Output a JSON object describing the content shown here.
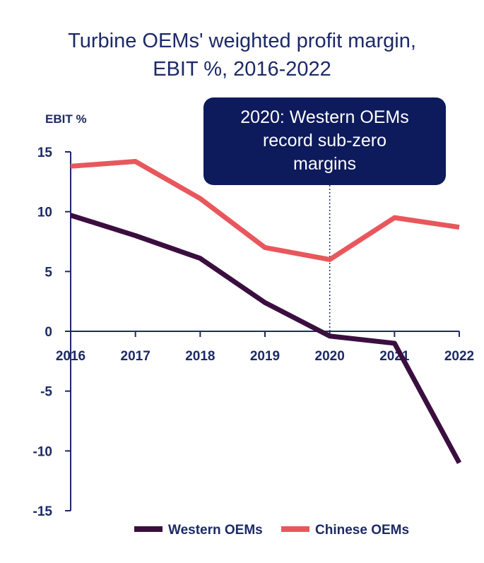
{
  "chart_data": {
    "type": "line",
    "title_lines": [
      "Turbine OEMs' weighted profit margin,",
      "EBIT %, 2016-2022"
    ],
    "ylabel": "EBIT %",
    "x": [
      "2016",
      "2017",
      "2018",
      "2019",
      "2020",
      "2021",
      "2022"
    ],
    "ylim": [
      -15,
      15
    ],
    "yticks": [
      "15",
      "10",
      "5",
      "0",
      "-5",
      "-10",
      "-15"
    ],
    "series": [
      {
        "name": "Western OEMs",
        "color": "#3a0f3f",
        "values": [
          9.7,
          8.0,
          6.1,
          2.4,
          -0.4,
          -1.0,
          -11.0
        ]
      },
      {
        "name": "Chinese OEMs",
        "color": "#e8575c",
        "values": [
          13.8,
          14.2,
          11.1,
          7.0,
          6.0,
          9.5,
          8.7
        ]
      }
    ],
    "annotation": {
      "x": "2020",
      "lines": [
        "2020: Western OEMs",
        "record sub-zero",
        "margins"
      ],
      "box_color": "#0d1a5c"
    },
    "legend_position": "bottom",
    "grid": false
  }
}
